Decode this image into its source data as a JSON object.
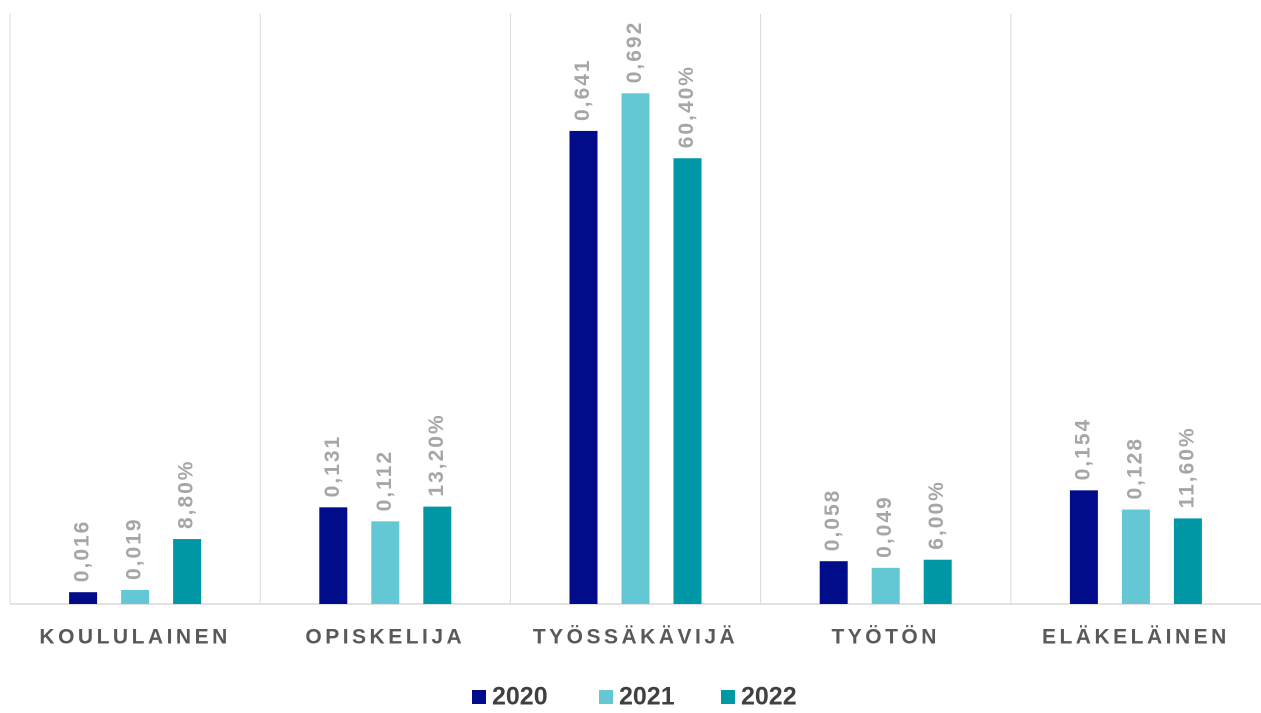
{
  "chart_data": {
    "type": "bar",
    "categories": [
      "KOULULAINEN",
      "OPISKELIJA",
      "TYÖSSÄKÄVIJÄ",
      "TYÖTÖN",
      "ELÄKELÄINEN"
    ],
    "series": [
      {
        "name": "2020",
        "color": "#000c8a",
        "values": [
          0.016,
          0.131,
          0.641,
          0.058,
          0.154
        ],
        "value_labels": [
          "0,016",
          "0,131",
          "0,641",
          "0,058",
          "0,154"
        ]
      },
      {
        "name": "2021",
        "color": "#63c8d3",
        "values": [
          0.019,
          0.112,
          0.692,
          0.049,
          0.128
        ],
        "value_labels": [
          "0,019",
          "0,112",
          "0,692",
          "0,049",
          "0,128"
        ]
      },
      {
        "name": "2022",
        "color": "#0097a7",
        "values": [
          0.088,
          0.132,
          0.604,
          0.06,
          0.116
        ],
        "value_labels": [
          "8,80%",
          "13,20%",
          "60,40%",
          "6,00%",
          "11,60%"
        ]
      }
    ],
    "ylim": [
      0,
      0.8
    ],
    "legend": "bottom"
  }
}
